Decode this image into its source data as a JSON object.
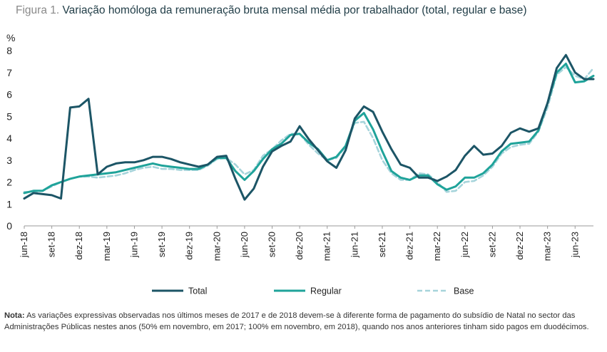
{
  "title": {
    "prefix": "Figura 1.",
    "text": "Variação homóloga da remuneração bruta mensal média por trabalhador (total, regular e base)"
  },
  "note": {
    "label": "Nota:",
    "text": "As variações expressivas observadas nos últimos meses de 2017 e de 2018 devem-se à diferente forma de pagamento do subsídio de Natal no sector das Administrações Públicas nestes anos (50% em novembro, em 2017; 100% em novembro, em 2018), quando nos anos anteriores tinham sido pagos em duodécimos."
  },
  "chart_data": {
    "type": "line",
    "ylabel": "%",
    "ylim": [
      0,
      8
    ],
    "yticks": [
      "0",
      "1",
      "2",
      "3",
      "4",
      "5",
      "6",
      "7",
      "8"
    ],
    "x_tick_labels": [
      "jun-18",
      "set-18",
      "dez-18",
      "mar-19",
      "jun-19",
      "set-19",
      "dez-19",
      "mar-20",
      "jun-20",
      "set-20",
      "dez-20",
      "mar-21",
      "jun-21",
      "set-21",
      "dez-21",
      "mar-22",
      "jun-22",
      "set-22",
      "dez-22",
      "mar-23",
      "jun-23"
    ],
    "legend_position": "bottom",
    "grid": false,
    "colors": {
      "Total": "#1c5566",
      "Regular": "#1fa39a",
      "Base": "#a6d4db"
    },
    "series": [
      {
        "name": "Total",
        "values": [
          1.25,
          1.5,
          1.45,
          1.4,
          1.25,
          5.4,
          5.45,
          5.8,
          2.35,
          2.7,
          2.85,
          2.9,
          2.9,
          3.0,
          3.15,
          3.15,
          3.05,
          2.9,
          2.8,
          2.7,
          2.8,
          3.15,
          3.2,
          2.15,
          1.2,
          1.7,
          2.7,
          3.4,
          3.65,
          3.85,
          4.55,
          3.95,
          3.45,
          2.95,
          2.65,
          3.45,
          4.9,
          5.45,
          5.2,
          4.3,
          3.5,
          2.8,
          2.65,
          2.2,
          2.2,
          2.05,
          2.25,
          2.55,
          3.2,
          3.65,
          3.25,
          3.3,
          3.65,
          4.25,
          4.45,
          4.3,
          4.45,
          5.6,
          7.2,
          7.8,
          7.0,
          6.7,
          6.7
        ]
      },
      {
        "name": "Regular",
        "values": [
          1.5,
          1.6,
          1.6,
          1.85,
          2.0,
          2.15,
          2.25,
          2.3,
          2.35,
          2.4,
          2.45,
          2.55,
          2.65,
          2.75,
          2.85,
          2.75,
          2.7,
          2.65,
          2.6,
          2.6,
          2.8,
          3.1,
          3.1,
          2.5,
          2.1,
          2.5,
          3.05,
          3.5,
          3.75,
          4.15,
          4.2,
          3.8,
          3.5,
          3.0,
          3.15,
          3.65,
          4.8,
          5.15,
          4.4,
          3.4,
          2.5,
          2.2,
          2.1,
          2.3,
          2.3,
          1.9,
          1.65,
          1.8,
          2.2,
          2.2,
          2.4,
          2.8,
          3.4,
          3.75,
          3.8,
          3.85,
          4.35,
          5.6,
          7.0,
          7.4,
          6.55,
          6.6,
          6.85
        ]
      },
      {
        "name": "Base",
        "values": [
          1.55,
          1.55,
          1.6,
          1.8,
          2.0,
          2.15,
          2.25,
          2.25,
          2.2,
          2.25,
          2.3,
          2.4,
          2.55,
          2.65,
          2.7,
          2.6,
          2.6,
          2.55,
          2.55,
          2.55,
          2.75,
          3.05,
          3.1,
          2.8,
          2.35,
          2.55,
          3.2,
          3.5,
          3.9,
          4.2,
          4.2,
          3.7,
          3.3,
          3.0,
          3.1,
          3.6,
          4.7,
          4.75,
          4.0,
          3.0,
          2.4,
          2.1,
          2.1,
          2.4,
          2.35,
          2.0,
          1.55,
          1.6,
          2.0,
          2.05,
          2.3,
          2.7,
          3.3,
          3.6,
          3.7,
          3.75,
          4.3,
          5.4,
          6.9,
          7.25,
          6.85,
          6.7,
          7.2
        ]
      }
    ]
  }
}
